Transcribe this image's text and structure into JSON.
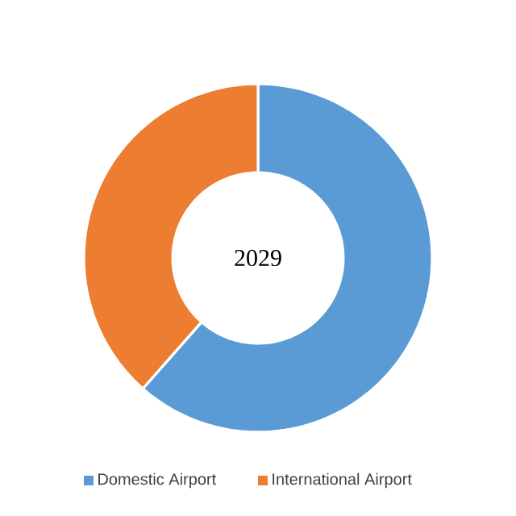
{
  "chart_data": {
    "type": "donut",
    "title": "2029",
    "categories": [
      "Domestic Airport",
      "International Airport"
    ],
    "values": [
      61.5,
      38.5
    ],
    "colors": [
      "#5b9bd5",
      "#ed7d31"
    ],
    "legend": "bottom"
  }
}
